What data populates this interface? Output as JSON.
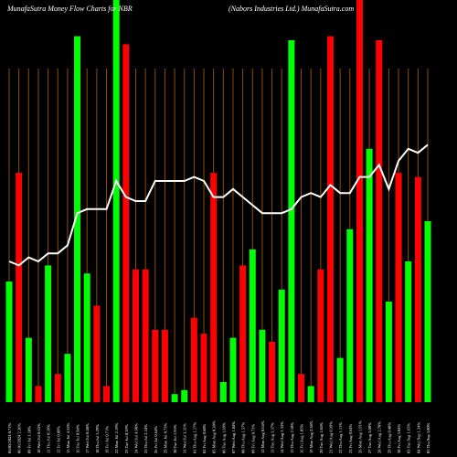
{
  "header": {
    "left_title": "MunafaSutra  Money Flow  Charts for NBR",
    "right_title": "(Nabors Industries Ltd.) MunafaSutra.com"
  },
  "colors": {
    "background": "#000000",
    "up": "#00ff00",
    "down": "#ff0000",
    "grid": "#8b4f00",
    "line": "#ffffff",
    "label": "#ffffff"
  },
  "chart_data": {
    "type": "bar",
    "title": "",
    "grid": "vertical",
    "ylim": [
      0,
      100
    ],
    "categories": [
      "05/05/2024 0.71%",
      "06 01/2024 2.36%",
      "09 Fri Jul 1.18%",
      "10 Wed Jul 0.63%",
      "11 Thu Jul 0.39%",
      "12 Fri Jul 0.89%",
      "15 Mon Jul 4.52%",
      "16 Tue Jul 0.94%",
      "17 Wed Jul 0.48%",
      "18 Thu Jul 3.29%",
      "19 Fri Jul 0.71%",
      "22 Mon Jul 2.19%",
      "23 Tue Jul 0.39%",
      "24 Wed Jul 4.98%",
      "25 Thu Jul 2.34%",
      "26 Fri Jul 0.64%",
      "29 Mon Jul 0.73%",
      "30 Tue Jul 1.93%",
      "31 Wed Jul 3.31%",
      "01 Thu Aug 1.17%",
      "02 Fri Aug 0.68%",
      "05 Mon Aug 0.38%",
      "06 Tue Aug 1.69%",
      "07 Wed Aug 1.84%",
      "08 Thu Aug 1.57%",
      "09 Fri Aug 0.71%",
      "12 Mon Aug 0.64%",
      "13 Tue Aug 3.37%",
      "14 Wed Aug 1.33%",
      "15 Thu Aug 2.18%",
      "16 Fri Aug 1.05%",
      "19 Mon Aug 2.38%",
      "20 Tue Aug 1.84%",
      "21 Wed Aug 0.39%",
      "22 Thu Aug 1.11%",
      "23 Fri Aug 0.64%",
      "26 Mon Aug 1.91%",
      "27 Tue Aug 3.08%",
      "28 Wed Aug 2.78%",
      "29 Thu Aug 0.48%",
      "30 Fri Aug 3.04%",
      "03 Tue Sep 1.65%",
      "04 Wed Sep 1.34%",
      "05 Thu Sep 3.00%"
    ],
    "series": [
      {
        "values": [
          30,
          57,
          16,
          4,
          34,
          7,
          12,
          91,
          32,
          24,
          4,
          100,
          89,
          33,
          33,
          18,
          18,
          2,
          3,
          21,
          17,
          57,
          5,
          16,
          34,
          38,
          18,
          15,
          28,
          90,
          7,
          4,
          33,
          91,
          11,
          43,
          100,
          63,
          90,
          25,
          57,
          35,
          56,
          45
        ],
        "direction": [
          "up",
          "down",
          "up",
          "down",
          "up",
          "down",
          "up",
          "up",
          "up",
          "down",
          "down",
          "up",
          "down",
          "down",
          "down",
          "down",
          "down",
          "up",
          "up",
          "down",
          "down",
          "down",
          "up",
          "up",
          "down",
          "up",
          "up",
          "down",
          "up",
          "up",
          "down",
          "up",
          "down",
          "down",
          "up",
          "up",
          "down",
          "up",
          "down",
          "up",
          "down",
          "up",
          "down",
          "up"
        ]
      },
      {
        "type": "line",
        "values": [
          35,
          34,
          36,
          35,
          37,
          37,
          39,
          47,
          48,
          48,
          48,
          55,
          51,
          50,
          50,
          55,
          55,
          55,
          55,
          56,
          55,
          51,
          51,
          53,
          51,
          49,
          47,
          47,
          47,
          48,
          51,
          52,
          51,
          54,
          52,
          52,
          56,
          56,
          59,
          53,
          60,
          63,
          62,
          64
        ]
      }
    ]
  }
}
